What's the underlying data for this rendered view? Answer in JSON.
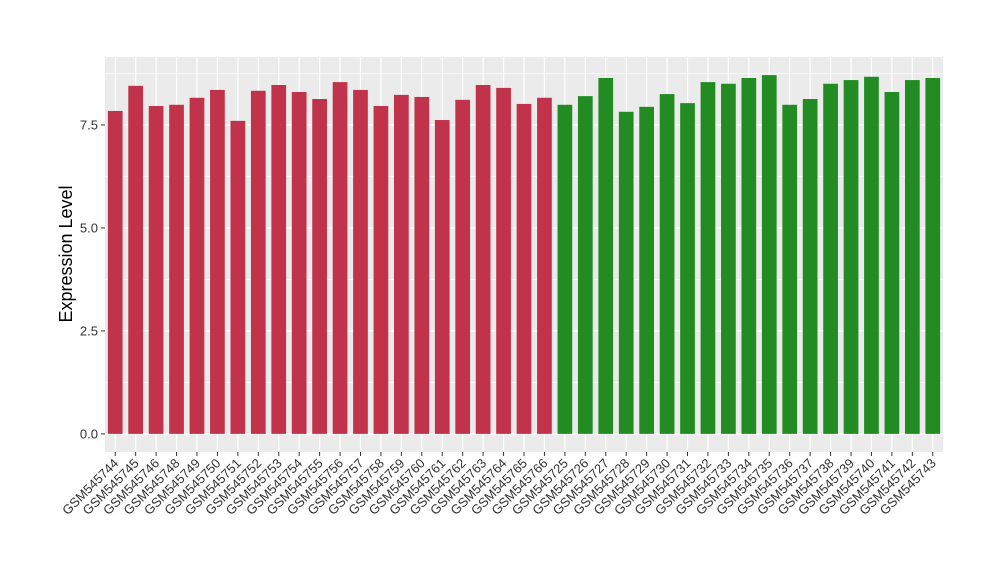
{
  "chart_data": {
    "type": "bar",
    "y_label": "Expression Level",
    "categories": [
      "GSM545744",
      "GSM545745",
      "GSM545746",
      "GSM545748",
      "GSM545749",
      "GSM545750",
      "GSM545751",
      "GSM545752",
      "GSM545753",
      "GSM545754",
      "GSM545755",
      "GSM545756",
      "GSM545757",
      "GSM545758",
      "GSM545759",
      "GSM545760",
      "GSM545761",
      "GSM545762",
      "GSM545763",
      "GSM545764",
      "GSM545765",
      "GSM545766",
      "GSM545725",
      "GSM545726",
      "GSM545727",
      "GSM545728",
      "GSM545729",
      "GSM545730",
      "GSM545731",
      "GSM545732",
      "GSM545733",
      "GSM545734",
      "GSM545735",
      "GSM545736",
      "GSM545737",
      "GSM545738",
      "GSM545739",
      "GSM545740",
      "GSM545741",
      "GSM545742",
      "GSM545743"
    ],
    "values": [
      7.84,
      8.45,
      7.96,
      7.99,
      8.16,
      8.35,
      7.6,
      8.33,
      8.47,
      8.3,
      8.13,
      8.54,
      8.35,
      7.96,
      8.23,
      8.18,
      7.62,
      8.11,
      8.47,
      8.4,
      8.01,
      8.16,
      7.99,
      8.2,
      8.64,
      7.82,
      7.94,
      8.25,
      8.03,
      8.54,
      8.5,
      8.64,
      8.71,
      7.99,
      8.13,
      8.5,
      8.59,
      8.67,
      8.3,
      8.59,
      8.64
    ],
    "colors": [
      "#c0334a",
      "#c0334a",
      "#c0334a",
      "#c0334a",
      "#c0334a",
      "#c0334a",
      "#c0334a",
      "#c0334a",
      "#c0334a",
      "#c0334a",
      "#c0334a",
      "#c0334a",
      "#c0334a",
      "#c0334a",
      "#c0334a",
      "#c0334a",
      "#c0334a",
      "#c0334a",
      "#c0334a",
      "#c0334a",
      "#c0334a",
      "#c0334a",
      "#228b22",
      "#228b22",
      "#228b22",
      "#228b22",
      "#228b22",
      "#228b22",
      "#228b22",
      "#228b22",
      "#228b22",
      "#228b22",
      "#228b22",
      "#228b22",
      "#228b22",
      "#228b22",
      "#228b22",
      "#228b22",
      "#228b22",
      "#228b22",
      "#228b22"
    ],
    "ylim": [
      -0.44,
      9.15
    ],
    "yticks": [
      {
        "value": 0,
        "label": "0.0"
      },
      2.5,
      {
        "value": 5,
        "label": "5.0"
      },
      7.5
    ],
    "y_minor_grid": [
      1.25,
      3.75,
      6.25,
      8.75
    ],
    "grid": true
  }
}
